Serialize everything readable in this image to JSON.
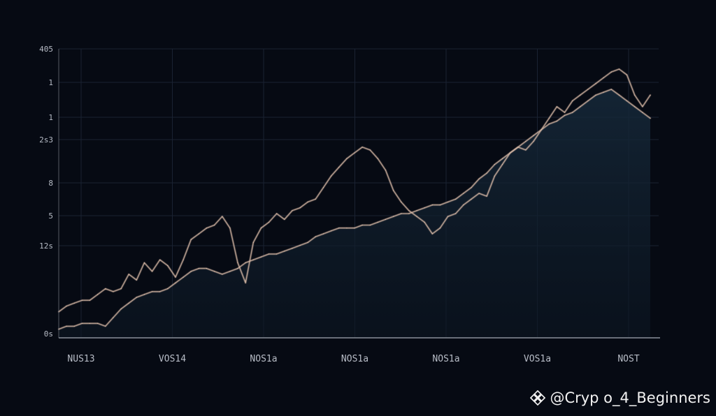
{
  "chart_data": {
    "type": "line",
    "title": "",
    "xlabel": "",
    "ylabel": "",
    "x_tick_labels": [
      "NUS13",
      "VOS14",
      "NOS1a",
      "NOS1a",
      "NOS1a",
      "VOS1a",
      "NOST"
    ],
    "y_tick_labels": [
      "405",
      "1",
      "1",
      "2s3",
      "8",
      "5",
      "12s",
      "0s"
    ],
    "grid": true,
    "legend": "none",
    "colors": {
      "background": "#060a13",
      "grid": "#1a2232",
      "axis": "#8a8f99",
      "line": "#d8b9a6",
      "area": "#12222e",
      "tick_text": "#b7bcc6"
    },
    "ylim": [
      0,
      100
    ],
    "series": [
      {
        "values": [
          9,
          11,
          12,
          13,
          13,
          15,
          17,
          16,
          17,
          22,
          20,
          26,
          23,
          27,
          25,
          21,
          27,
          34,
          36,
          38,
          39,
          42,
          38,
          26,
          19,
          33,
          38,
          40,
          43,
          41,
          44,
          45,
          47,
          48,
          52,
          56,
          59,
          62,
          64,
          66,
          65,
          62,
          58,
          51,
          47,
          44,
          42,
          40,
          36,
          38,
          42,
          43,
          46,
          48,
          50,
          49,
          56,
          60,
          64,
          66,
          65,
          68,
          72,
          76,
          80,
          78,
          82,
          84,
          86,
          88,
          90,
          92,
          93,
          91,
          84,
          80,
          84
        ]
      },
      {
        "values": [
          3,
          4,
          4,
          5,
          5,
          5,
          4,
          7,
          10,
          12,
          14,
          15,
          16,
          16,
          17,
          19,
          21,
          23,
          24,
          24,
          23,
          22,
          23,
          24,
          26,
          27,
          28,
          29,
          29,
          30,
          31,
          32,
          33,
          35,
          36,
          37,
          38,
          38,
          38,
          39,
          39,
          40,
          41,
          42,
          43,
          43,
          44,
          45,
          46,
          46,
          47,
          48,
          50,
          52,
          55,
          57,
          60,
          62,
          64,
          66,
          68,
          70,
          72,
          74,
          75,
          77,
          78,
          80,
          82,
          84,
          85,
          86,
          84,
          82,
          80,
          78,
          76
        ]
      }
    ]
  },
  "watermark": {
    "text": "@Cryp o_4_Beginners"
  }
}
